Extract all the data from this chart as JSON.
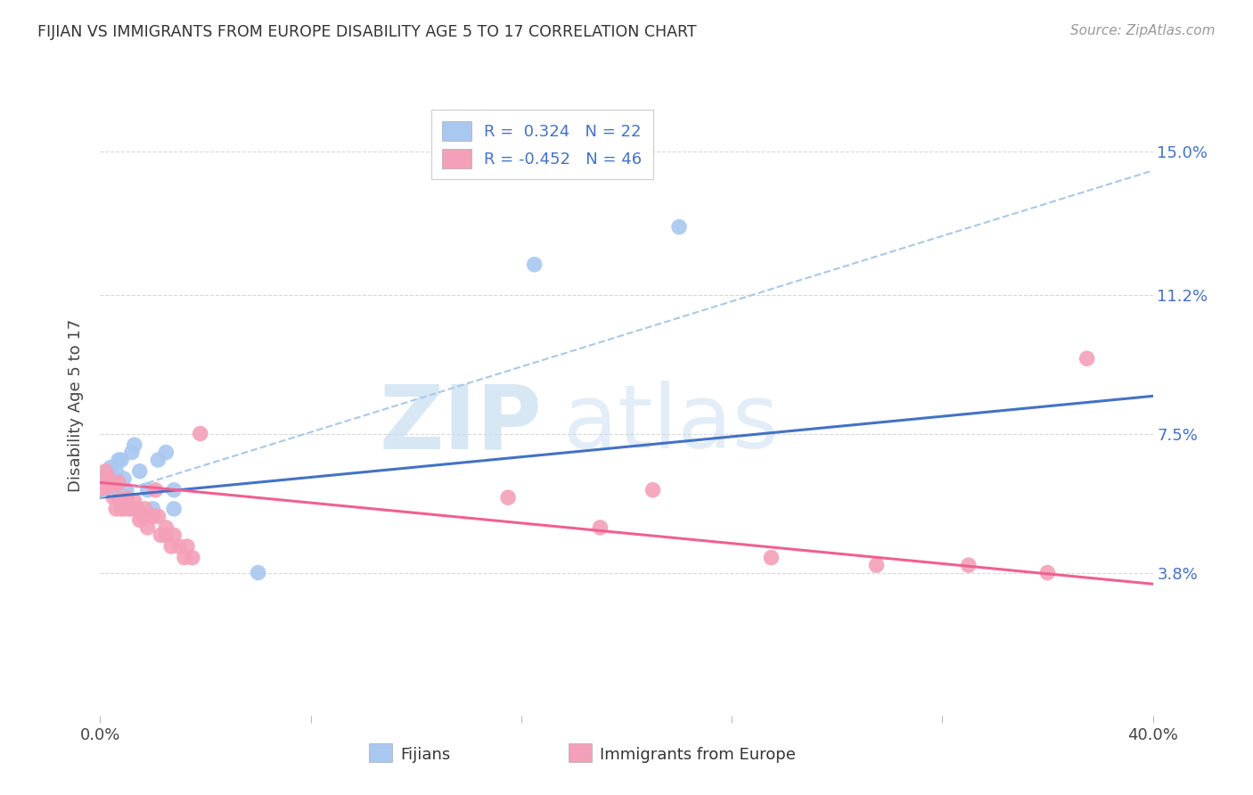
{
  "title": "FIJIAN VS IMMIGRANTS FROM EUROPE DISABILITY AGE 5 TO 17 CORRELATION CHART",
  "source": "Source: ZipAtlas.com",
  "ylabel": "Disability Age 5 to 17",
  "xlim": [
    0.0,
    0.4
  ],
  "ylim": [
    0.0,
    0.165
  ],
  "ytick_labels_right": [
    "15.0%",
    "11.2%",
    "7.5%",
    "3.8%"
  ],
  "ytick_vals_right": [
    0.15,
    0.112,
    0.075,
    0.038
  ],
  "legend_r1": "R =  0.324   N = 22",
  "legend_r2": "R = -0.452   N = 46",
  "color_fijian": "#a8c8f0",
  "color_europe": "#f4a0b8",
  "color_fijian_line": "#4472c4",
  "color_europe_line": "#f06090",
  "color_dashed_line": "#aac8e8",
  "watermark_zip": "ZIP",
  "watermark_atlas": "atlas",
  "fijian_x": [
    0.002,
    0.003,
    0.004,
    0.005,
    0.006,
    0.006,
    0.007,
    0.008,
    0.009,
    0.01,
    0.012,
    0.013,
    0.015,
    0.018,
    0.02,
    0.022,
    0.025,
    0.028,
    0.028,
    0.06,
    0.165,
    0.22
  ],
  "fijian_y": [
    0.063,
    0.065,
    0.066,
    0.063,
    0.06,
    0.065,
    0.068,
    0.068,
    0.063,
    0.06,
    0.07,
    0.072,
    0.065,
    0.06,
    0.055,
    0.068,
    0.07,
    0.06,
    0.055,
    0.038,
    0.12,
    0.13
  ],
  "europe_x": [
    0.001,
    0.002,
    0.003,
    0.003,
    0.004,
    0.004,
    0.005,
    0.005,
    0.006,
    0.006,
    0.007,
    0.007,
    0.008,
    0.008,
    0.009,
    0.009,
    0.01,
    0.011,
    0.012,
    0.013,
    0.014,
    0.015,
    0.016,
    0.017,
    0.018,
    0.02,
    0.021,
    0.022,
    0.023,
    0.025,
    0.025,
    0.027,
    0.028,
    0.03,
    0.032,
    0.033,
    0.035,
    0.038,
    0.155,
    0.19,
    0.21,
    0.255,
    0.295,
    0.33,
    0.36,
    0.375
  ],
  "europe_y": [
    0.06,
    0.065,
    0.06,
    0.063,
    0.06,
    0.062,
    0.058,
    0.062,
    0.055,
    0.06,
    0.058,
    0.062,
    0.055,
    0.058,
    0.055,
    0.058,
    0.058,
    0.055,
    0.055,
    0.057,
    0.055,
    0.052,
    0.053,
    0.055,
    0.05,
    0.053,
    0.06,
    0.053,
    0.048,
    0.048,
    0.05,
    0.045,
    0.048,
    0.045,
    0.042,
    0.045,
    0.042,
    0.075,
    0.058,
    0.05,
    0.06,
    0.042,
    0.04,
    0.04,
    0.038,
    0.095
  ],
  "fijian_trend_x": [
    0.0,
    0.4
  ],
  "fijian_trend_y": [
    0.058,
    0.085
  ],
  "europe_trend_x": [
    0.0,
    0.4
  ],
  "europe_trend_y": [
    0.062,
    0.035
  ],
  "dashed_trend_x": [
    0.0,
    0.4
  ],
  "dashed_trend_y": [
    0.058,
    0.145
  ],
  "background_color": "#ffffff",
  "grid_color": "#d8d8d8"
}
